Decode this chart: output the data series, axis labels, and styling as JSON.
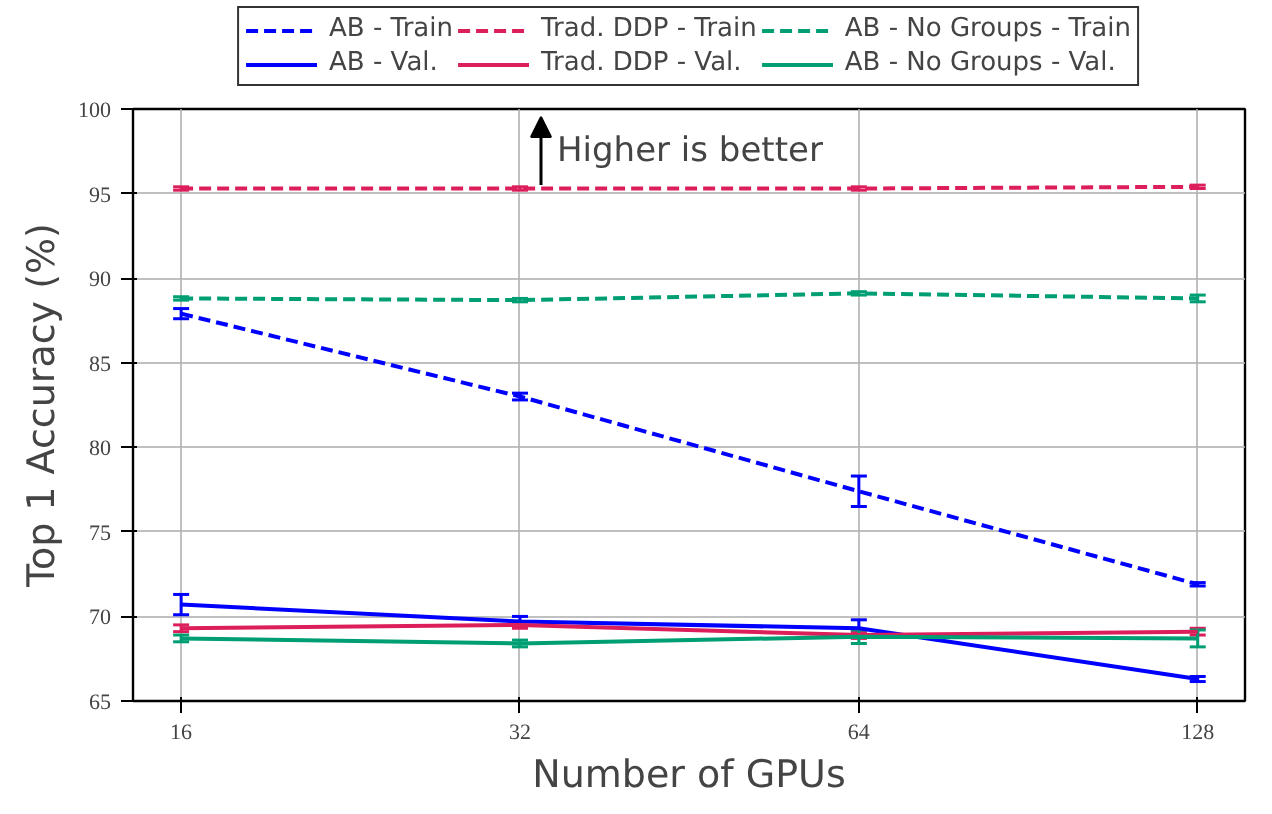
{
  "chart_data": {
    "type": "line",
    "xlabel": "Number of GPUs",
    "ylabel": "Top 1 Accuracy (%)",
    "x": [
      16,
      32,
      64,
      128
    ],
    "log": "x",
    "xlim": [
      14.5,
      141
    ],
    "xticks": [
      16,
      32,
      64,
      128
    ],
    "ylim": [
      65,
      100
    ],
    "yticks": [
      65,
      70,
      75,
      80,
      85,
      90,
      95,
      100
    ],
    "grid": true,
    "legend": "top",
    "annotations": [
      "Higher is better"
    ],
    "series": [
      {
        "name": "AB - Train",
        "color": "#0000ff",
        "line_style": "dashed",
        "values": [
          87.9,
          83.0,
          77.4,
          71.9
        ],
        "errors": [
          0.3,
          0.2,
          0.9,
          0.1
        ]
      },
      {
        "name": "AB - Val.",
        "color": "#0000ff",
        "line_style": "solid",
        "values": [
          70.7,
          69.7,
          69.3,
          66.3
        ],
        "errors": [
          0.6,
          0.3,
          0.5,
          0.15
        ]
      },
      {
        "name": "Trad. DDP - Train",
        "color": "#dc1f5b",
        "line_style": "dashed",
        "values": [
          95.3,
          95.3,
          95.3,
          95.4
        ],
        "errors": [
          0.1,
          0.1,
          0.1,
          0.1
        ]
      },
      {
        "name": "Trad. DDP - Val.",
        "color": "#dc1f5b",
        "line_style": "solid",
        "values": [
          69.3,
          69.5,
          68.9,
          69.1
        ],
        "errors": [
          0.2,
          0.2,
          0.2,
          0.2
        ]
      },
      {
        "name": "AB - No Groups - Train",
        "color": "#009e73",
        "line_style": "dashed",
        "values": [
          88.8,
          88.7,
          89.1,
          88.8
        ],
        "errors": [
          0.1,
          0.1,
          0.1,
          0.2
        ]
      },
      {
        "name": "AB - No Groups - Val.",
        "color": "#009e73",
        "line_style": "solid",
        "values": [
          68.7,
          68.4,
          68.8,
          68.7
        ],
        "errors": [
          0.2,
          0.2,
          0.4,
          0.5
        ]
      }
    ]
  }
}
